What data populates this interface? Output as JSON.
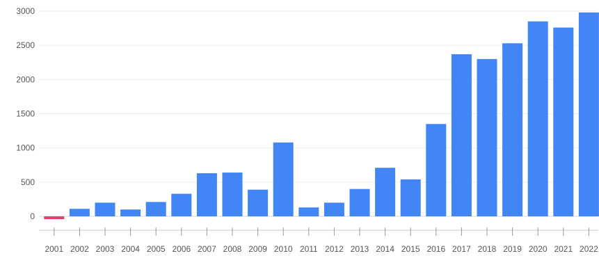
{
  "chart_data": {
    "type": "bar",
    "title": "",
    "xlabel": "",
    "ylabel": "",
    "categories": [
      "2001",
      "2002",
      "2003",
      "2004",
      "2005",
      "2006",
      "2007",
      "2008",
      "2009",
      "2010",
      "2011",
      "2012",
      "2013",
      "2014",
      "2015",
      "2016",
      "2017",
      "2018",
      "2019",
      "2020",
      "2021",
      "2022"
    ],
    "values": [
      -30,
      110,
      200,
      100,
      210,
      330,
      630,
      640,
      390,
      1080,
      130,
      200,
      400,
      710,
      540,
      1350,
      2370,
      2300,
      2530,
      2850,
      2760,
      2980
    ],
    "ylim": [
      -90,
      3000
    ],
    "yticks": [
      0,
      500,
      1000,
      1500,
      2000,
      2500,
      3000
    ],
    "ytick_labels": [
      "0",
      "500",
      "1000",
      "1500",
      "2000",
      "2500",
      "3000"
    ],
    "grid": true,
    "legend": "none",
    "colors": {
      "positive": "#4285f4",
      "negative": "#e2406b"
    }
  }
}
